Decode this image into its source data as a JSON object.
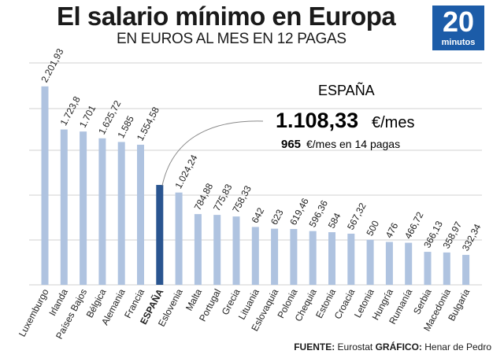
{
  "header": {
    "title": "El salario mínimo en Europa",
    "subtitle": "EN EUROS AL MES EN 12 PAGAS"
  },
  "logo": {
    "number": "20",
    "word": "minutos"
  },
  "source": {
    "fuente_label": "FUENTE:",
    "fuente_value": "Eurostat",
    "grafico_label": "GRÁFICO:",
    "grafico_value": "Henar de Pedro"
  },
  "highlight": {
    "country": "ESPAÑA",
    "value_label": "1.108,33",
    "unit": "€/mes",
    "secondary_value": "965",
    "secondary_unit": "€/mes en 14 pagas"
  },
  "colors": {
    "bar": "#afc3e0",
    "highlight_bar": "#2a5590",
    "grid": "#d2d2d2"
  },
  "chart_data": {
    "type": "bar",
    "title": "El salario mínimo en Europa",
    "subtitle": "EN EUROS AL MES EN 12 PAGAS",
    "ylim": [
      0,
      2200
    ],
    "grid": true,
    "highlight_index": 6,
    "categories": [
      "Luxemburgo",
      "Irlanda",
      "Países Bajos",
      "Bélgica",
      "Alemania",
      "Francia",
      "ESPAÑA",
      "Eslovenia",
      "Malta",
      "Portugal",
      "Grecia",
      "Lituania",
      "Eslovaquia",
      "Polonia",
      "Chequia",
      "Estonia",
      "Croacia",
      "Letonia",
      "Hungría",
      "Rumanía",
      "Serbia",
      "Macedonia",
      "Bulgaria"
    ],
    "values": [
      2201.93,
      1723.8,
      1701,
      1625.72,
      1585,
      1554.58,
      1108.33,
      1024.24,
      784.88,
      775.83,
      758.33,
      642,
      623,
      619.46,
      596.36,
      584,
      567.32,
      500,
      476,
      466.72,
      366.13,
      358.97,
      332.34
    ],
    "value_labels": [
      "2.201,93",
      "1.723,8",
      "1.701",
      "1.625,72",
      "1.585",
      "1.554,58",
      "",
      "1.024,24",
      "784,88",
      "775,83",
      "758,33",
      "642",
      "623",
      "619,46",
      "596,36",
      "584",
      "567,32",
      "500",
      "476",
      "466,72",
      "366,13",
      "358,97",
      "332,34"
    ]
  }
}
